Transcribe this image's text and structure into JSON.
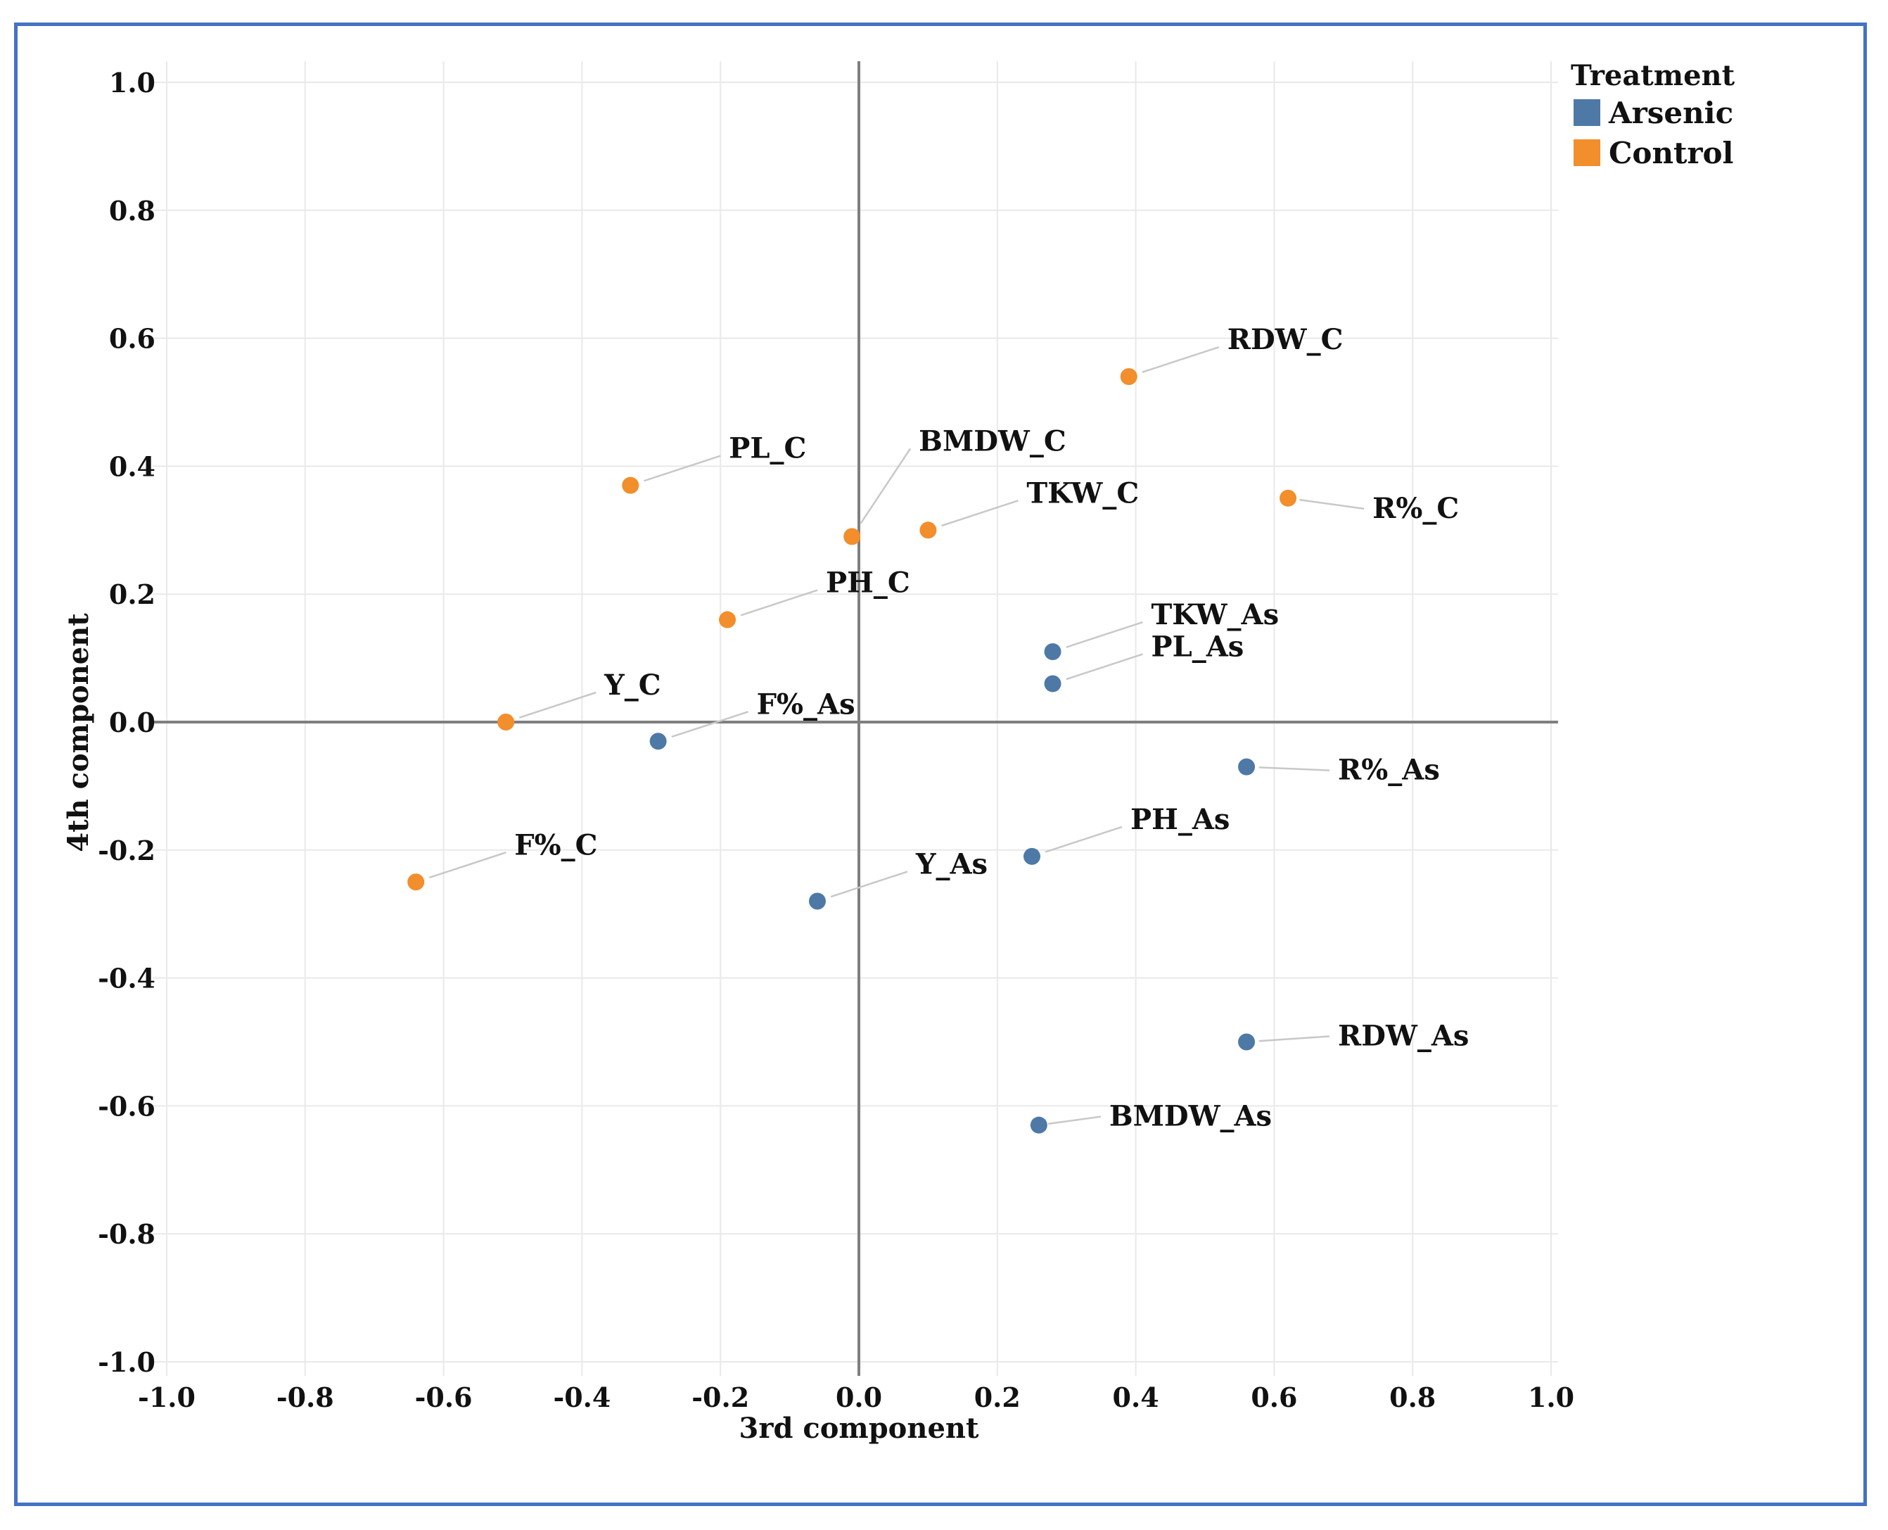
{
  "chart_data": {
    "type": "scatter",
    "xlabel": "3rd component",
    "ylabel": "4th component",
    "xlim": [
      -1.0,
      1.0
    ],
    "ylim": [
      -1.0,
      1.0
    ],
    "x_ticks": [
      "-1.0",
      "-0.8",
      "-0.6",
      "-0.4",
      "-0.2",
      "0.0",
      "0.2",
      "0.4",
      "0.6",
      "0.8",
      "1.0"
    ],
    "y_ticks": [
      "1.0",
      "0.8",
      "0.6",
      "0.4",
      "0.2",
      "0.0",
      "-0.2",
      "-0.4",
      "-0.6",
      "-0.8",
      "-1.0"
    ],
    "grid": true,
    "legend": {
      "title": "Treatment",
      "position": "top-right",
      "entries": [
        {
          "name": "Arsenic",
          "color": "#4e79a7"
        },
        {
          "name": "Control",
          "color": "#f28e2b"
        }
      ]
    },
    "series": [
      {
        "name": "Arsenic",
        "color": "#4e79a7",
        "points": [
          {
            "label": "TKW_As",
            "x": 0.28,
            "y": 0.11
          },
          {
            "label": "PL_As",
            "x": 0.28,
            "y": 0.06
          },
          {
            "label": "F%_As",
            "x": -0.29,
            "y": -0.03
          },
          {
            "label": "R%_As",
            "x": 0.56,
            "y": -0.07
          },
          {
            "label": "PH_As",
            "x": 0.25,
            "y": -0.21
          },
          {
            "label": "Y_As",
            "x": -0.06,
            "y": -0.28
          },
          {
            "label": "RDW_As",
            "x": 0.56,
            "y": -0.5
          },
          {
            "label": "BMDW_As",
            "x": 0.26,
            "y": -0.63
          }
        ]
      },
      {
        "name": "Control",
        "color": "#f28e2b",
        "points": [
          {
            "label": "RDW_C",
            "x": 0.39,
            "y": 0.54
          },
          {
            "label": "PL_C",
            "x": -0.33,
            "y": 0.37
          },
          {
            "label": "R%_C",
            "x": 0.62,
            "y": 0.35
          },
          {
            "label": "TKW_C",
            "x": 0.1,
            "y": 0.3
          },
          {
            "label": "BMDW_C",
            "x": -0.01,
            "y": 0.29
          },
          {
            "label": "PH_C",
            "x": -0.19,
            "y": 0.16
          },
          {
            "label": "Y_C",
            "x": -0.51,
            "y": 0.0
          },
          {
            "label": "F%_C",
            "x": -0.64,
            "y": -0.25
          }
        ]
      }
    ]
  }
}
